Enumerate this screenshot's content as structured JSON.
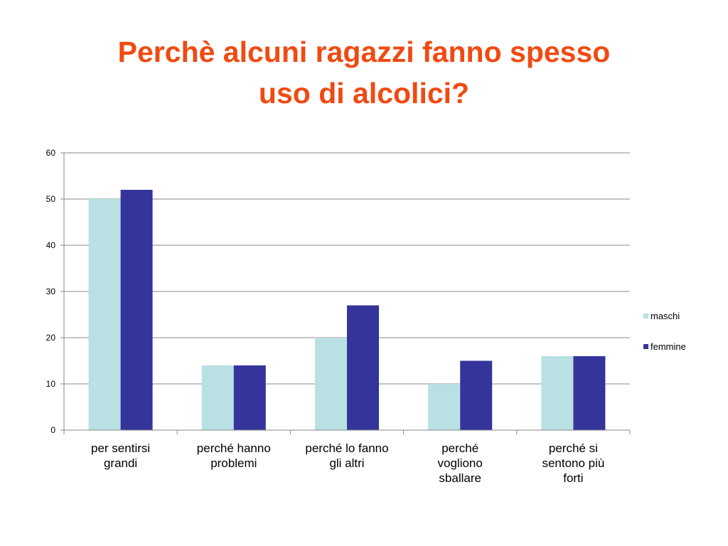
{
  "title_lines": [
    "Perchè alcuni ragazzi fanno spesso",
    "uso di alcolici?"
  ],
  "colors": {
    "title": "#f04a12",
    "maschi": "#b9e0e2",
    "femmine": "#35349b",
    "grid": "#888888"
  },
  "chart_data": {
    "type": "bar",
    "title": "Perchè alcuni ragazzi fanno spesso uso di alcolici?",
    "categories": [
      [
        "per sentirsi",
        "grandi"
      ],
      [
        "perché hanno",
        "problemi"
      ],
      [
        "perché lo fanno",
        "gli altri"
      ],
      [
        "perché",
        "vogliono",
        "sballare"
      ],
      [
        "perché si",
        "sentono più",
        "forti"
      ]
    ],
    "series": [
      {
        "name": "maschi",
        "values": [
          50,
          14,
          20,
          10,
          16
        ]
      },
      {
        "name": "femmine",
        "values": [
          52,
          14,
          27,
          15,
          16
        ]
      }
    ],
    "yticks": [
      "0",
      "10",
      "20",
      "30",
      "40",
      "50",
      "60"
    ],
    "ylim": [
      0,
      60
    ],
    "grid": true,
    "legend": "right"
  }
}
